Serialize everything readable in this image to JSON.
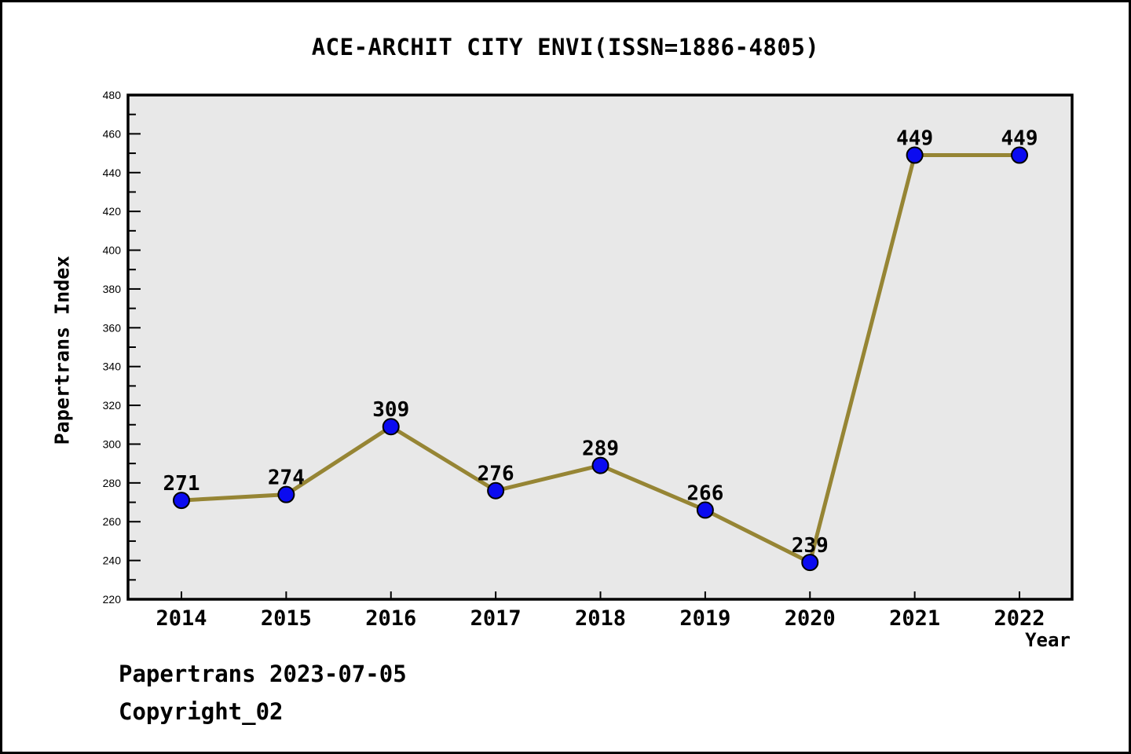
{
  "title": "ACE-ARCHIT CITY ENVI(ISSN=1886-4805)",
  "footer": {
    "line1": "Papertrans 2023-07-05",
    "line2": "Copyright_02"
  },
  "chart_data": {
    "type": "line",
    "title": "ACE-ARCHIT CITY ENVI(ISSN=1886-4805)",
    "xlabel": "Year",
    "ylabel": "Papertrans Index",
    "categories": [
      "2014",
      "2015",
      "2016",
      "2017",
      "2018",
      "2019",
      "2020",
      "2021",
      "2022"
    ],
    "values": [
      271,
      274,
      309,
      276,
      289,
      266,
      239,
      449,
      449
    ],
    "ylim": [
      220,
      480
    ],
    "y_major_step": 20,
    "y_minor_step": 10,
    "grid": false,
    "legend": "none",
    "colors": {
      "line": "#968534",
      "marker_fill": "#0b0bf0",
      "marker_edge": "#000000",
      "plot_background": "#e8e8e8",
      "axis": "#000000"
    }
  }
}
